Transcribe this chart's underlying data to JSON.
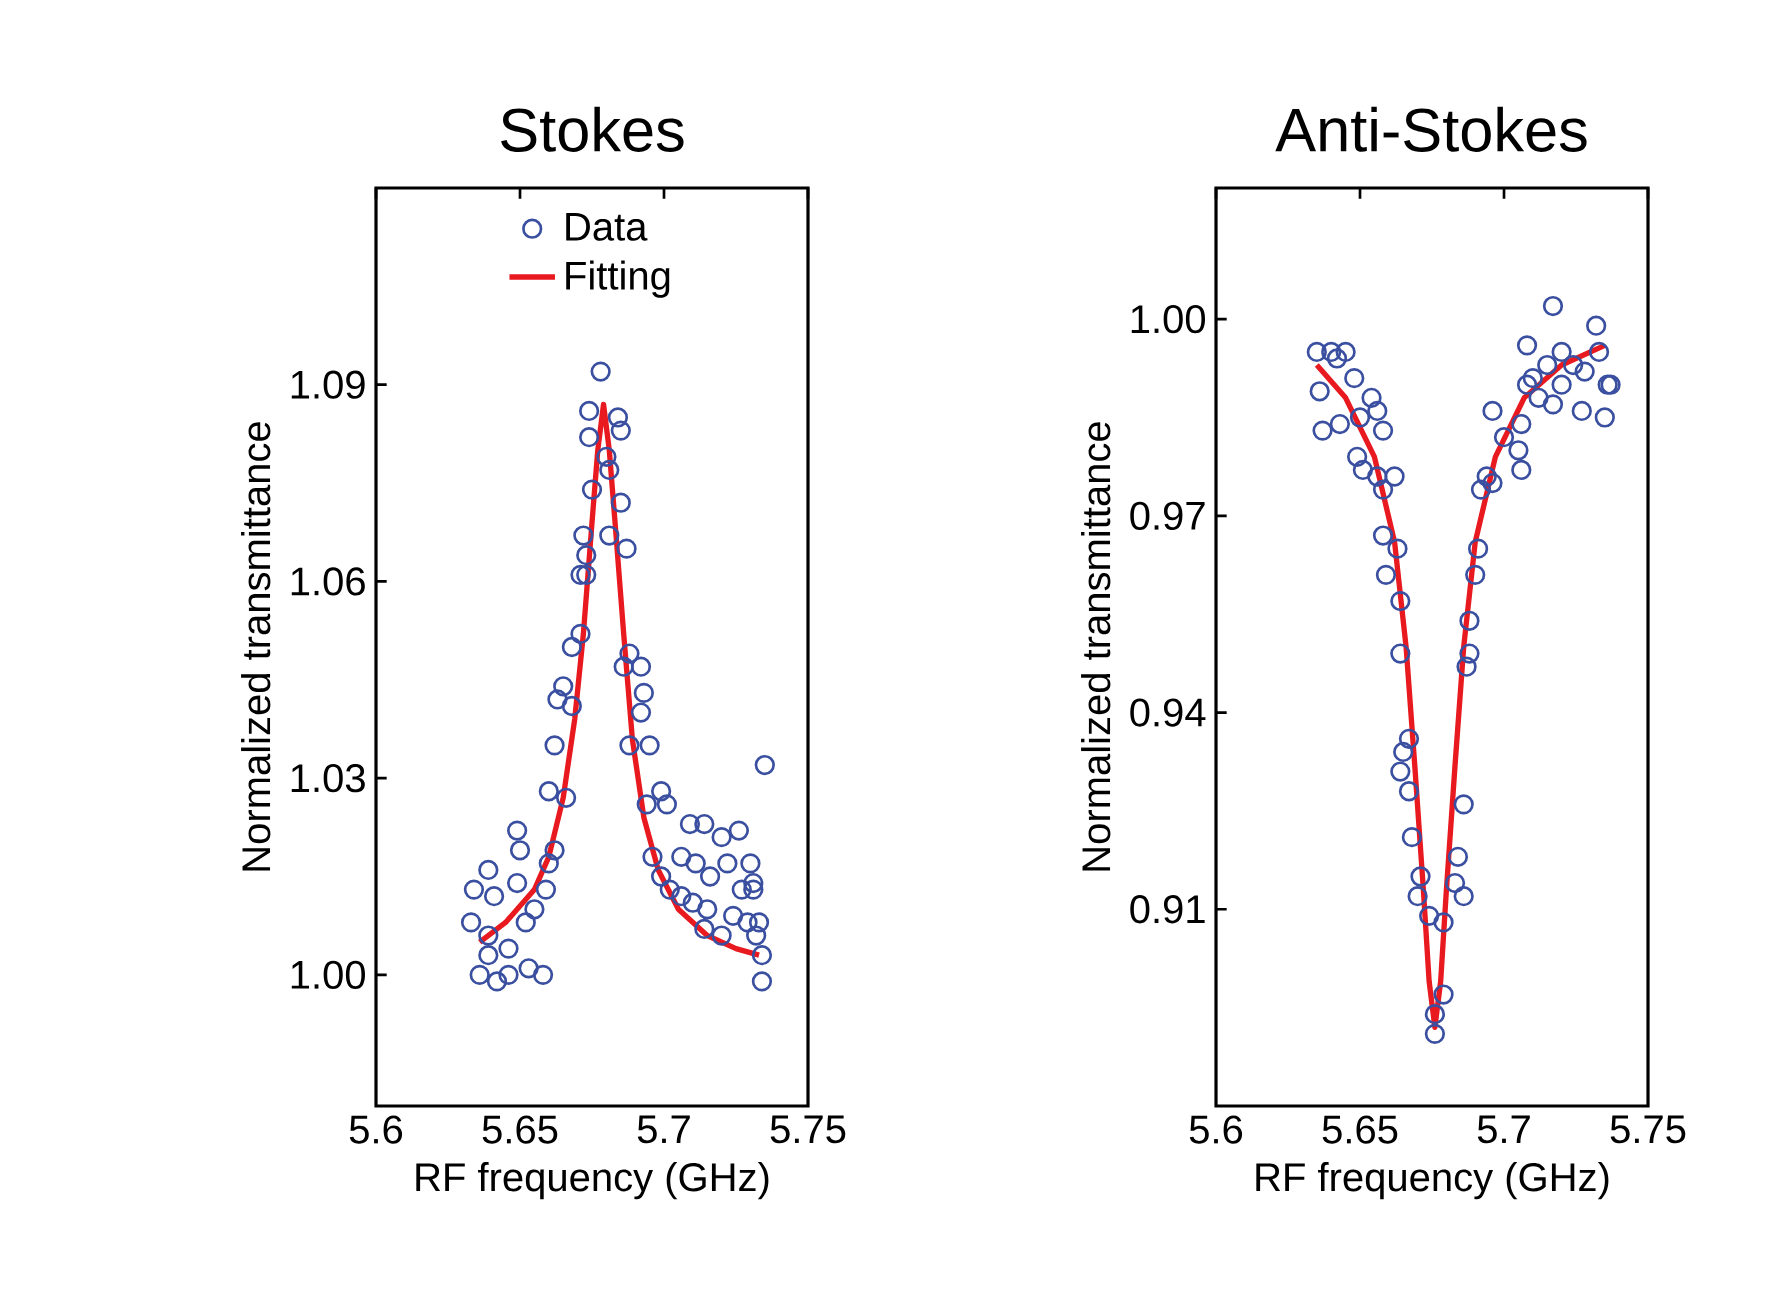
{
  "chart_data": [
    {
      "type": "scatter",
      "title": "Stokes",
      "xlabel": "RF frequency (GHz)",
      "ylabel": "Normalized transmittance",
      "xlim": [
        5.6,
        5.75
      ],
      "ylim": [
        0.98,
        1.12
      ],
      "xticks": [
        5.6,
        5.65,
        5.7,
        5.75
      ],
      "yticks": [
        {
          "value": 1.0,
          "label": "1.00"
        },
        1.03,
        1.06,
        1.09
      ],
      "legend": "top",
      "series": [
        {
          "name": "Data",
          "color": "#3a4fa0",
          "marker": "circle",
          "x": [
            5.678,
            5.674,
            5.684,
            5.685,
            5.674,
            5.68,
            5.681,
            5.675,
            5.685,
            5.672,
            5.681,
            5.673,
            5.687,
            5.671,
            5.673,
            5.671,
            5.668,
            5.665,
            5.663,
            5.668,
            5.688,
            5.692,
            5.686,
            5.693,
            5.692,
            5.688,
            5.695,
            5.662,
            5.66,
            5.666,
            5.699,
            5.694,
            5.701,
            5.649,
            5.65,
            5.662,
            5.66,
            5.639,
            5.634,
            5.641,
            5.649,
            5.659,
            5.655,
            5.652,
            5.633,
            5.639,
            5.646,
            5.639,
            5.653,
            5.658,
            5.636,
            5.642,
            5.646,
            5.696,
            5.699,
            5.702,
            5.706,
            5.709,
            5.714,
            5.72,
            5.726,
            5.711,
            5.716,
            5.722,
            5.73,
            5.731,
            5.727,
            5.731,
            5.706,
            5.71,
            5.715,
            5.714,
            5.72,
            5.724,
            5.729,
            5.733,
            5.732,
            5.734,
            5.734,
            5.735
          ],
          "values": [
            1.092,
            1.086,
            1.085,
            1.083,
            1.082,
            1.079,
            1.077,
            1.074,
            1.072,
            1.067,
            1.067,
            1.064,
            1.065,
            1.061,
            1.061,
            1.052,
            1.05,
            1.044,
            1.042,
            1.041,
            1.049,
            1.047,
            1.047,
            1.043,
            1.04,
            1.035,
            1.035,
            1.035,
            1.028,
            1.027,
            1.028,
            1.026,
            1.026,
            1.022,
            1.019,
            1.019,
            1.017,
            1.016,
            1.013,
            1.012,
            1.014,
            1.013,
            1.01,
            1.008,
            1.008,
            1.006,
            1.004,
            1.003,
            1.001,
            1.0,
            1.0,
            0.999,
            1.0,
            1.018,
            1.015,
            1.013,
            1.018,
            1.023,
            1.023,
            1.021,
            1.022,
            1.017,
            1.015,
            1.017,
            1.017,
            1.014,
            1.013,
            1.013,
            1.012,
            1.011,
            1.01,
            1.007,
            1.006,
            1.009,
            1.008,
            1.008,
            1.006,
            1.003,
            0.999,
            1.032
          ]
        },
        {
          "name": "Fitting",
          "type": "line",
          "color": "#e8191f",
          "x": [
            5.636,
            5.645,
            5.655,
            5.66,
            5.665,
            5.669,
            5.672,
            5.675,
            5.677,
            5.679,
            5.681,
            5.683,
            5.686,
            5.689,
            5.693,
            5.698,
            5.705,
            5.715,
            5.725,
            5.733
          ],
          "values": [
            1.005,
            1.008,
            1.013,
            1.018,
            1.027,
            1.039,
            1.052,
            1.069,
            1.08,
            1.087,
            1.08,
            1.069,
            1.052,
            1.036,
            1.024,
            1.016,
            1.01,
            1.006,
            1.004,
            1.003
          ]
        }
      ]
    },
    {
      "type": "scatter",
      "title": "Anti-Stokes",
      "xlabel": "RF frequency (GHz)",
      "ylabel": "Normalized transmittance",
      "xlim": [
        5.6,
        5.75
      ],
      "ylim": [
        0.88,
        1.02
      ],
      "xticks": [
        5.6,
        5.65,
        5.7,
        5.75
      ],
      "yticks": [
        0.91,
        0.94,
        0.97,
        {
          "value": 1.0,
          "label": "1.00"
        }
      ],
      "series": [
        {
          "color": "#3a4fa0",
          "marker": "circle",
          "x": [
            5.635,
            5.64,
            5.645,
            5.642,
            5.648,
            5.636,
            5.654,
            5.656,
            5.637,
            5.643,
            5.65,
            5.658,
            5.649,
            5.651,
            5.656,
            5.662,
            5.658,
            5.658,
            5.663,
            5.659,
            5.664,
            5.664,
            5.667,
            5.665,
            5.664,
            5.667,
            5.668,
            5.671,
            5.67,
            5.674,
            5.679,
            5.676,
            5.679,
            5.676,
            5.683,
            5.686,
            5.684,
            5.686,
            5.687,
            5.688,
            5.688,
            5.69,
            5.691,
            5.692,
            5.696,
            5.694,
            5.696,
            5.7,
            5.705,
            5.706,
            5.706,
            5.708,
            5.71,
            5.715,
            5.717,
            5.72,
            5.72,
            5.724,
            5.712,
            5.717,
            5.728,
            5.732,
            5.733,
            5.736,
            5.735,
            5.727,
            5.737,
            5.708
          ],
          "values": [
            0.995,
            0.995,
            0.995,
            0.994,
            0.991,
            0.989,
            0.988,
            0.986,
            0.983,
            0.984,
            0.985,
            0.983,
            0.979,
            0.977,
            0.976,
            0.976,
            0.974,
            0.967,
            0.965,
            0.961,
            0.957,
            0.949,
            0.936,
            0.934,
            0.931,
            0.928,
            0.921,
            0.915,
            0.912,
            0.909,
            0.908,
            0.894,
            0.897,
            0.891,
            0.914,
            0.912,
            0.918,
            0.926,
            0.947,
            0.949,
            0.954,
            0.961,
            0.965,
            0.974,
            0.975,
            0.976,
            0.986,
            0.982,
            0.98,
            0.977,
            0.984,
            0.996,
            0.991,
            0.993,
            1.002,
            0.995,
            0.99,
            0.993,
            0.988,
            0.987,
            0.992,
            0.999,
            0.995,
            0.99,
            0.985,
            0.986,
            0.99,
            0.99
          ]
        },
        {
          "type": "line",
          "color": "#e8191f",
          "x": [
            5.635,
            5.645,
            5.655,
            5.662,
            5.666,
            5.669,
            5.672,
            5.674,
            5.676,
            5.678,
            5.68,
            5.683,
            5.686,
            5.69,
            5.697,
            5.707,
            5.72,
            5.735
          ],
          "values": [
            0.993,
            0.988,
            0.979,
            0.966,
            0.95,
            0.932,
            0.913,
            0.899,
            0.892,
            0.899,
            0.913,
            0.932,
            0.95,
            0.966,
            0.979,
            0.988,
            0.993,
            0.996
          ]
        }
      ]
    }
  ]
}
